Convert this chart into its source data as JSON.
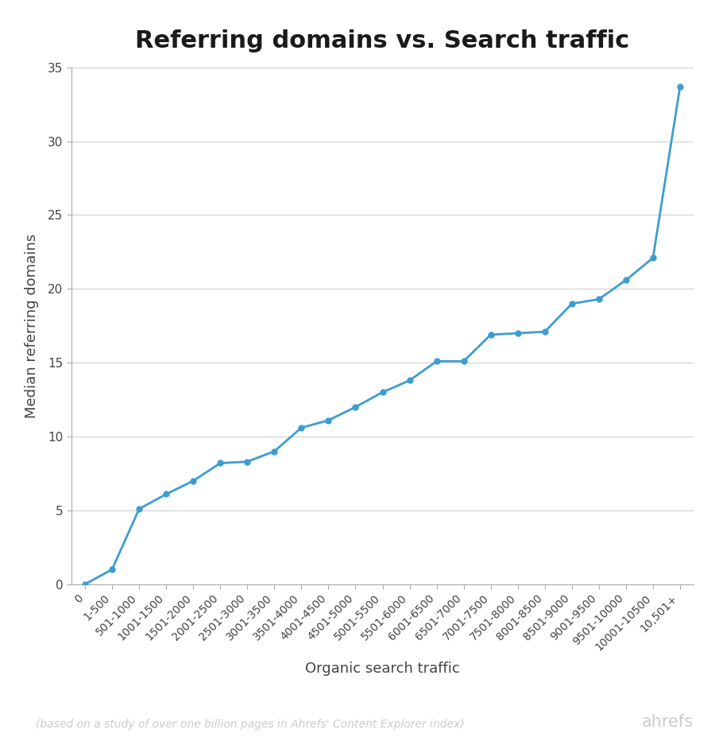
{
  "title": "Referring domains vs. Search traffic",
  "xlabel": "Organic search traffic",
  "ylabel": "Median referring domains",
  "footnote": "(based on a study of over one billion pages in Ahrefs' Content Explorer index)",
  "brand": "ahrefs",
  "categories": [
    "0",
    "1-500",
    "501-1000",
    "1001-1500",
    "1501-2000",
    "2001-2500",
    "2501-3000",
    "3001-3500",
    "3501-4000",
    "4001-4500",
    "4501-5000",
    "5001-5500",
    "5501-6000",
    "6001-6500",
    "6501-7000",
    "7001-7500",
    "7501-8000",
    "8001-8500",
    "8501-9000",
    "9001-9500",
    "9501-10000",
    "10001-10500",
    "10,501+"
  ],
  "values": [
    0,
    1,
    5.1,
    6.1,
    7.0,
    8.2,
    8.3,
    9.0,
    10.6,
    11.1,
    12.0,
    13.0,
    13.8,
    15.1,
    15.1,
    16.9,
    17.0,
    17.1,
    19.0,
    19.3,
    20.6,
    22.1,
    33.7
  ],
  "line_color": "#3D9DD0",
  "marker_color": "#3D9DD0",
  "background_color": "#ffffff",
  "grid_color": "#d0d0d0",
  "spine_color": "#aaaaaa",
  "title_fontsize": 22,
  "label_fontsize": 13,
  "tick_fontsize": 10,
  "footnote_fontsize": 10,
  "brand_fontsize": 15,
  "ylim": [
    0,
    35
  ],
  "yticks": [
    0,
    5,
    10,
    15,
    20,
    25,
    30,
    35
  ],
  "text_color": "#444444",
  "footnote_color": "#cccccc",
  "brand_color": "#cccccc"
}
